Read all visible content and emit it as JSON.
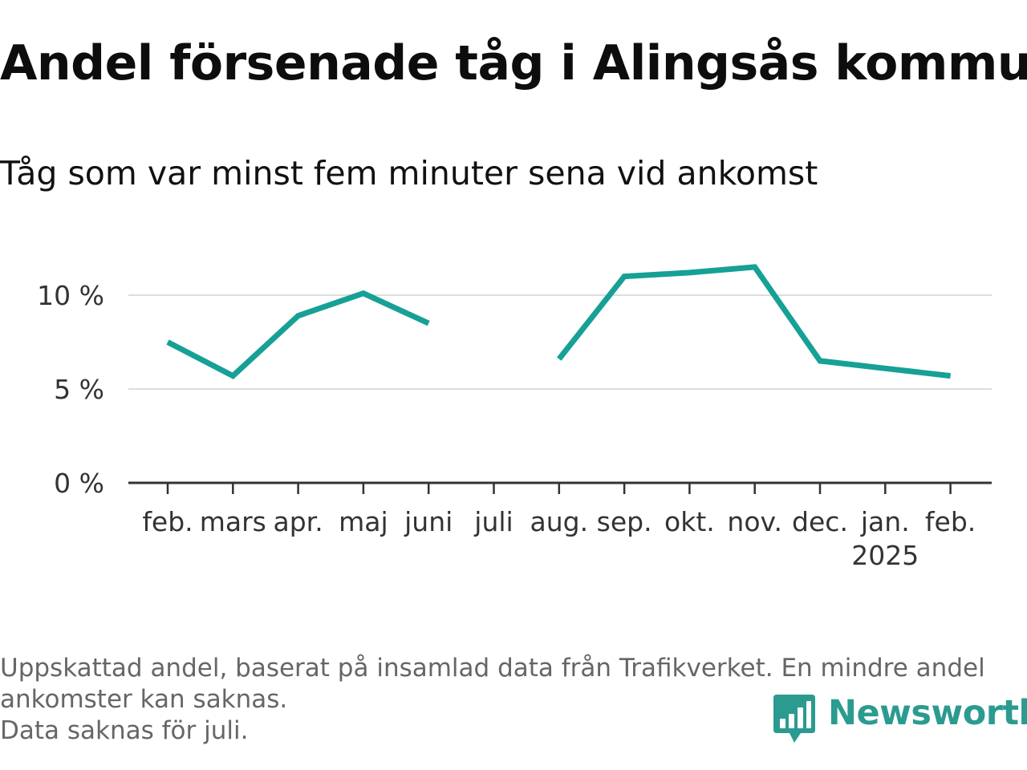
{
  "title": "Andel försenade tåg i Alingsås kommun",
  "subtitle": "Tåg som var minst fem minuter sena vid ankomst",
  "footnote": [
    "Uppskattad andel, baserat på insamlad data från Trafikverket. En mindre andel",
    "ankomster kan saknas.",
    "Data saknas för juli."
  ],
  "brand": {
    "name": "Newsworthy",
    "icon": "bar-chart-speech-bubble-icon",
    "color": "#2b9b90"
  },
  "chart_data": {
    "type": "line",
    "categories": [
      "feb.",
      "mars",
      "apr.",
      "maj",
      "juni",
      "juli",
      "aug.",
      "sep.",
      "okt.",
      "nov.",
      "dec.",
      "jan.",
      "feb."
    ],
    "category_sublabels": [
      "",
      "",
      "",
      "",
      "",
      "",
      "",
      "",
      "",
      "",
      "",
      "2025",
      ""
    ],
    "series": [
      {
        "color": "#16a096",
        "values": [
          7.5,
          5.7,
          8.9,
          10.1,
          8.5,
          null,
          6.6,
          11.0,
          11.2,
          11.5,
          6.5,
          6.1,
          5.7
        ]
      }
    ],
    "yticks": [
      {
        "value": 0,
        "label": "0 %"
      },
      {
        "value": 5,
        "label": "5 %"
      },
      {
        "value": 10,
        "label": "10 %"
      }
    ],
    "ylim": [
      0,
      12
    ],
    "grid": true,
    "gridline_color": "#dddddd",
    "axis_color": "#333333"
  }
}
